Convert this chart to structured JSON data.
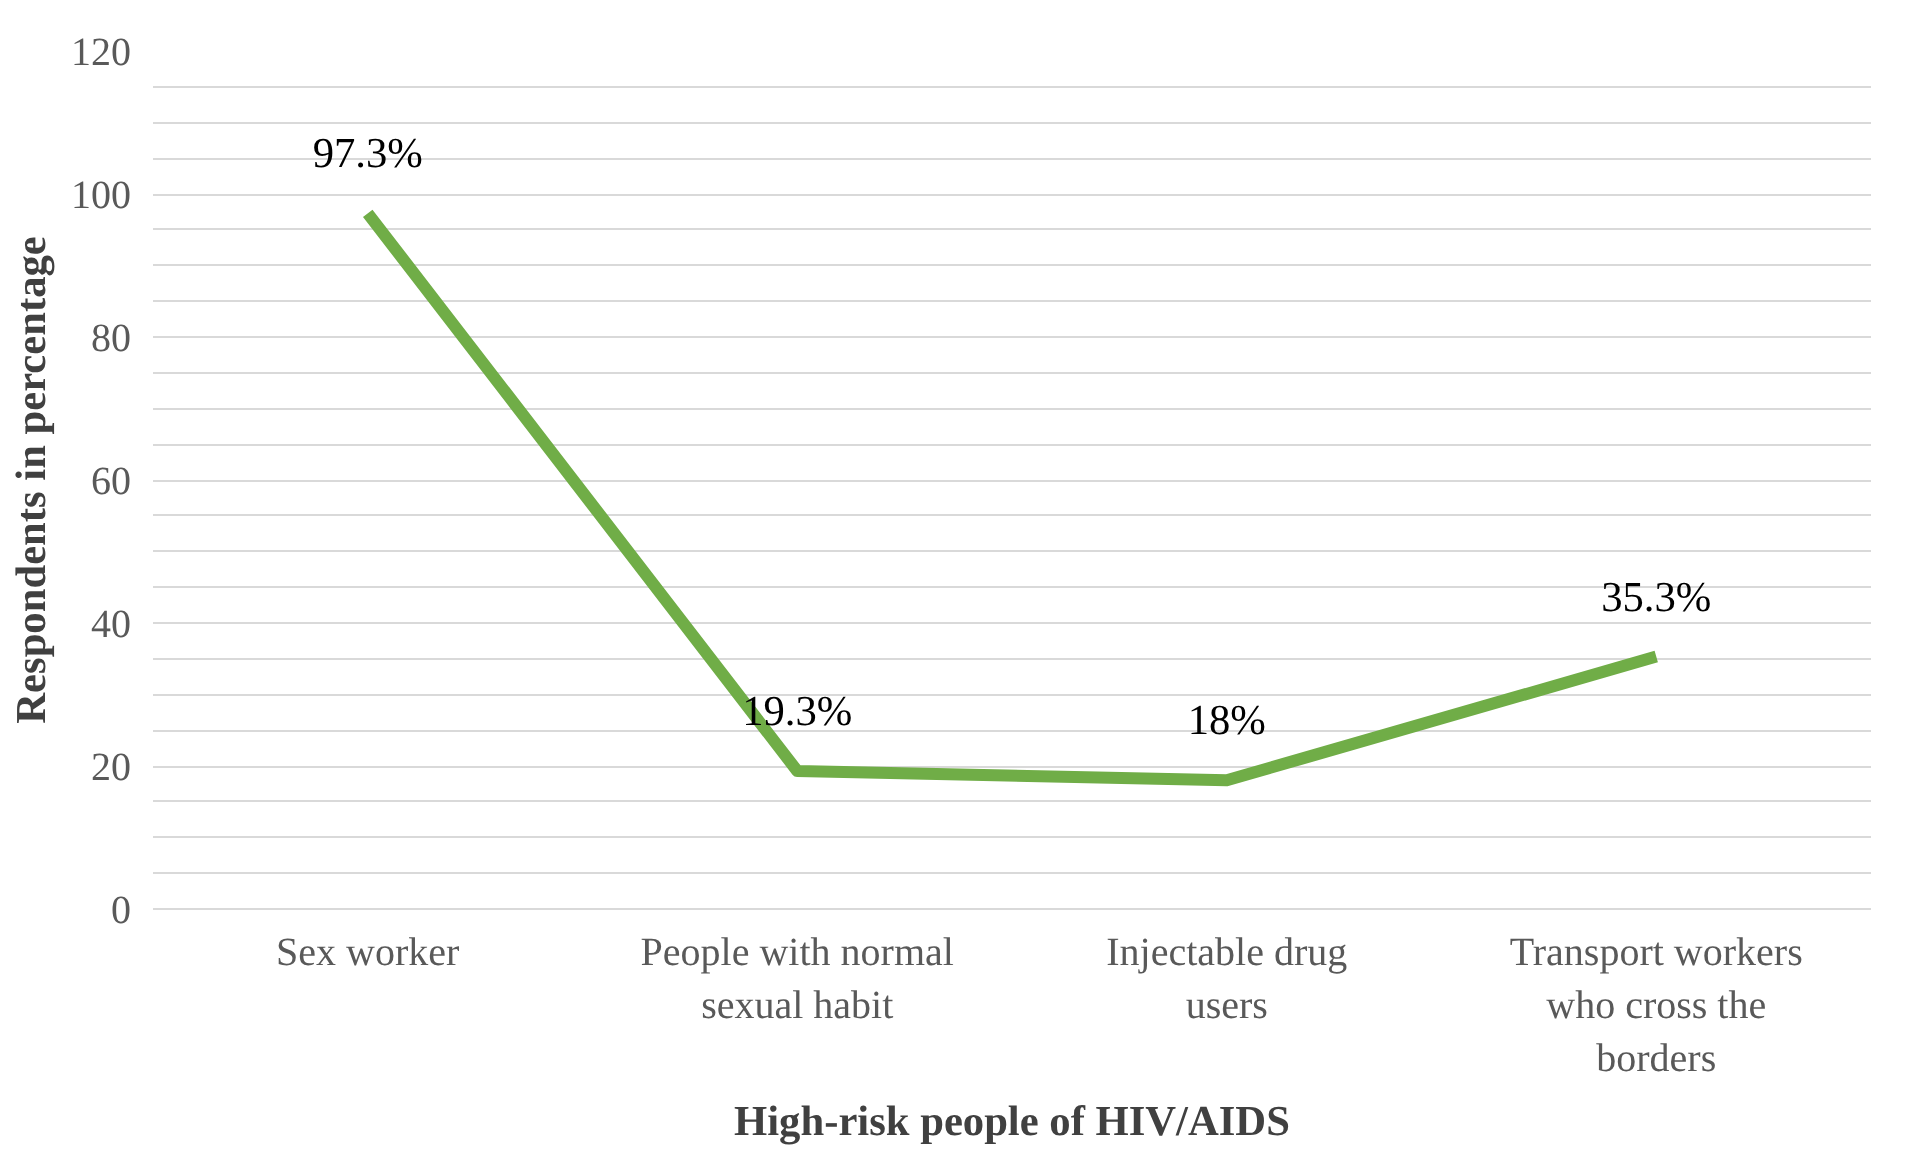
{
  "chart_data": {
    "type": "line",
    "xlabel": "High-risk people of HIV/AIDS",
    "ylabel": "Respondents in percentage",
    "categories": [
      "Sex worker",
      "People with normal sexual habit",
      "Injectable drug users",
      "Transport workers who cross the borders"
    ],
    "series": [
      {
        "color": "#70ad47",
        "values": [
          97.3,
          19.3,
          18,
          35.3
        ],
        "value_labels": [
          "97.3%",
          "19.3%",
          "18%",
          "35.3%"
        ]
      }
    ],
    "ylim": [
      0,
      120
    ],
    "yticks": [
      0,
      {
        "value": 5,
        "label": null
      },
      {
        "value": 10,
        "label": null
      },
      {
        "value": 15,
        "label": null
      },
      20,
      {
        "value": 25,
        "label": null
      },
      {
        "value": 30,
        "label": null
      },
      {
        "value": 35,
        "label": null
      },
      40,
      {
        "value": 45,
        "label": null
      },
      {
        "value": 50,
        "label": null
      },
      {
        "value": 55,
        "label": null
      },
      60,
      {
        "value": 65,
        "label": null
      },
      {
        "value": 70,
        "label": null
      },
      {
        "value": 75,
        "label": null
      },
      80,
      {
        "value": 85,
        "label": null
      },
      {
        "value": 90,
        "label": null
      },
      {
        "value": 95,
        "label": null
      },
      100,
      {
        "value": 105,
        "label": null
      },
      {
        "value": 110,
        "label": null
      },
      {
        "value": 115,
        "label": null
      },
      120
    ],
    "grid": "y",
    "marker": "none",
    "line_style": "solid"
  }
}
